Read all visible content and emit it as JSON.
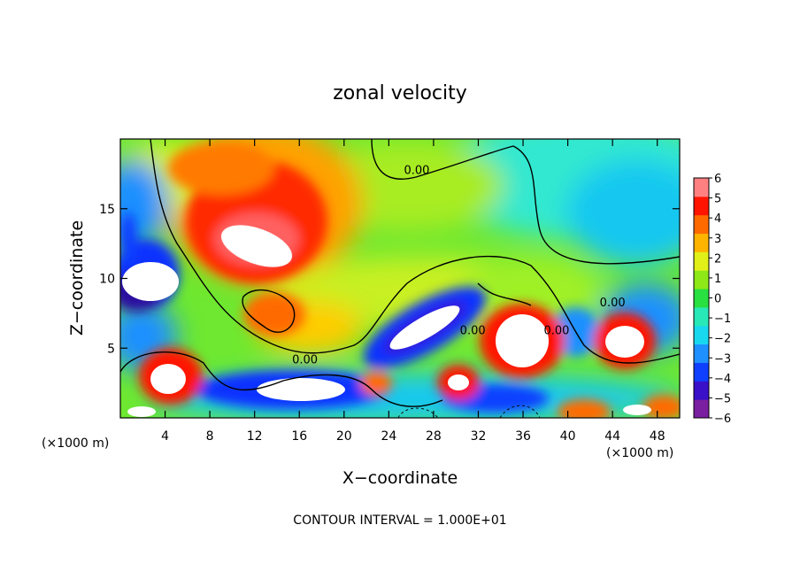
{
  "chart_data": {
    "type": "heatmap",
    "title": "zonal velocity",
    "xlabel": "X−coordinate",
    "ylabel": "Z−coordinate",
    "x_unit_left": "(×1000 m)",
    "x_unit_right": "(×1000 m)",
    "footer": "CONTOUR INTERVAL = 1.000E+01",
    "xlim": [
      0,
      50
    ],
    "ylim": [
      0,
      20
    ],
    "x_ticks": [
      4,
      8,
      12,
      16,
      20,
      24,
      28,
      32,
      36,
      40,
      44,
      48
    ],
    "y_ticks": [
      5,
      10,
      15
    ],
    "contour_label": "0.00",
    "contour_label_positions": [
      [
        26.5,
        17.5
      ],
      [
        16.5,
        3.9
      ],
      [
        31.5,
        6.0
      ],
      [
        39.0,
        6.0
      ],
      [
        44.0,
        8.0
      ]
    ],
    "colorbar": {
      "range": [
        -6,
        6
      ],
      "tick_labels": [
        "6",
        "5",
        "4",
        "3",
        "2",
        "1",
        "0",
        "−1",
        "−2",
        "−3",
        "−4",
        "−5",
        "−6"
      ],
      "colors": [
        "#7a1fa0",
        "#3a10c8",
        "#1040ff",
        "#1e90ff",
        "#18d8f0",
        "#28e8b8",
        "#28e040",
        "#8ee818",
        "#e0f018",
        "#ffb400",
        "#ff6a00",
        "#ff1400",
        "#ff8080"
      ]
    },
    "field_description_points": [
      {
        "name": "red-core-upper-left",
        "x": 13.5,
        "y": 13.0,
        "value": 6
      },
      {
        "name": "blue-left-edge",
        "x": 2.0,
        "y": 12.0,
        "value": -6
      },
      {
        "name": "blue-lower-band",
        "x": 20.0,
        "y": 2.5,
        "value": -6
      },
      {
        "name": "blue-diagonal-core",
        "x": 28.0,
        "y": 6.5,
        "value": -6
      },
      {
        "name": "red-core-right",
        "x": 36.5,
        "y": 5.5,
        "value": 6
      },
      {
        "name": "red-core-far-right",
        "x": 45.0,
        "y": 5.5,
        "value": 6
      },
      {
        "name": "red-core-lower-left",
        "x": 4.5,
        "y": 3.0,
        "value": 6
      },
      {
        "name": "red-core-bottom",
        "x": 30.0,
        "y": 2.5,
        "value": 6
      }
    ]
  }
}
